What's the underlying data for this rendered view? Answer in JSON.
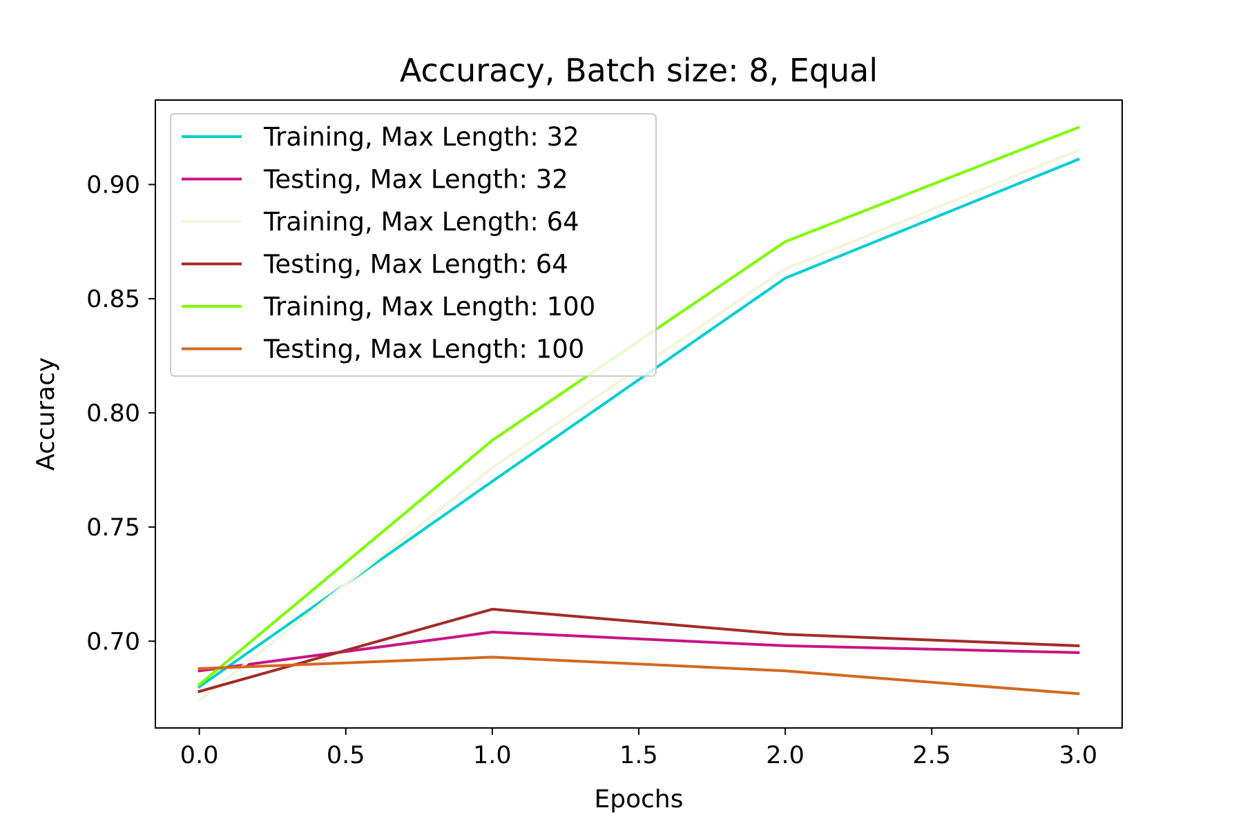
{
  "chart_data": {
    "type": "line",
    "title": "Accuracy, Batch size: 8, Equal",
    "xlabel": "Epochs",
    "ylabel": "Accuracy",
    "xlim": [
      -0.15,
      3.15
    ],
    "ylim": [
      0.662,
      0.937
    ],
    "xticks": [
      0.0,
      0.5,
      1.0,
      1.5,
      2.0,
      2.5,
      3.0
    ],
    "xtick_labels": [
      "0.0",
      "0.5",
      "1.0",
      "1.5",
      "2.0",
      "2.5",
      "3.0"
    ],
    "yticks": [
      0.7,
      0.75,
      0.8,
      0.85,
      0.9
    ],
    "ytick_labels": [
      "0.70",
      "0.75",
      "0.80",
      "0.85",
      "0.90"
    ],
    "x": [
      0,
      1,
      2,
      3
    ],
    "grid": false,
    "legend_position": "upper-left",
    "series": [
      {
        "name": "Training, Max Length: 32",
        "color": "#00CED1",
        "values": [
          0.68,
          0.77,
          0.859,
          0.911
        ]
      },
      {
        "name": "Testing, Max Length: 32",
        "color": "#C71585",
        "values": [
          0.687,
          0.704,
          0.698,
          0.695
        ]
      },
      {
        "name": "Training, Max Length: 64",
        "color": "#F5F5DC",
        "values": [
          0.674,
          0.776,
          0.863,
          0.915
        ]
      },
      {
        "name": "Testing, Max Length: 64",
        "color": "#A52A2A",
        "values": [
          0.678,
          0.714,
          0.703,
          0.698
        ]
      },
      {
        "name": "Training, Max Length: 100",
        "color": "#7CFC00",
        "values": [
          0.681,
          0.788,
          0.875,
          0.925
        ]
      },
      {
        "name": "Testing, Max Length: 100",
        "color": "#D2691E",
        "values": [
          0.688,
          0.693,
          0.687,
          0.677
        ]
      }
    ]
  }
}
